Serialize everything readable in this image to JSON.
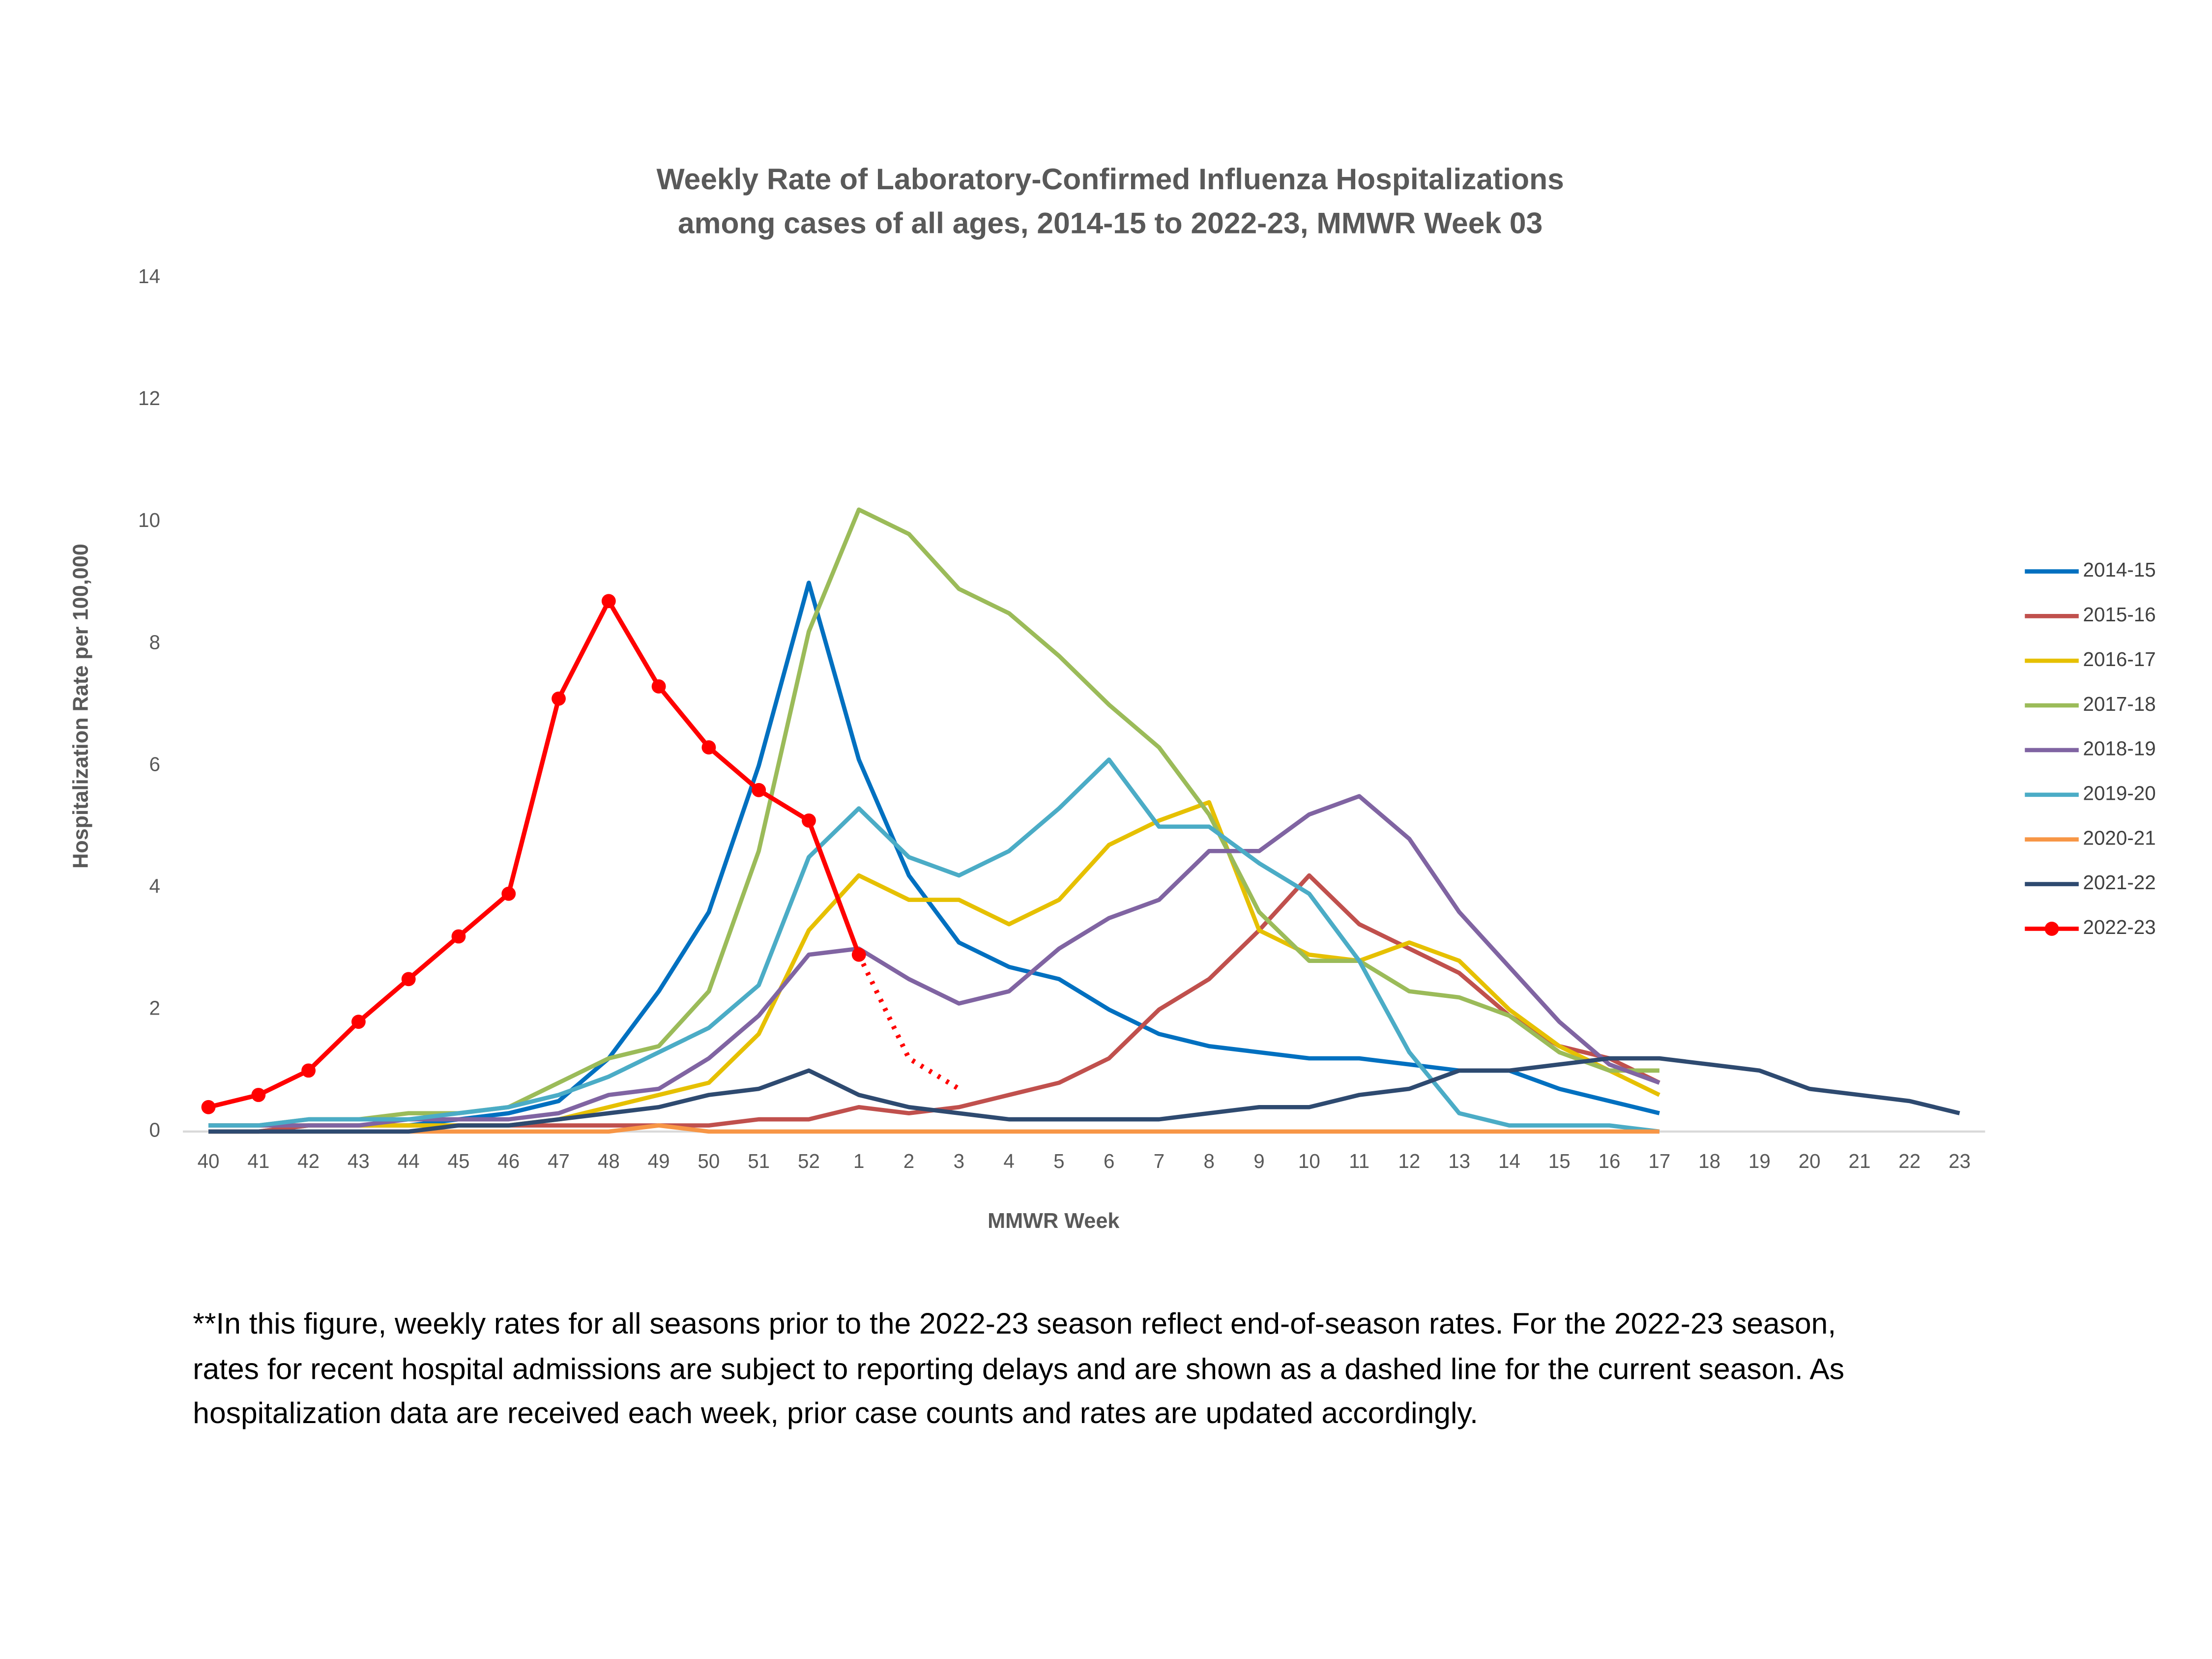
{
  "chart_data": {
    "type": "line",
    "title": [
      "Weekly Rate of Laboratory-Confirmed Influenza Hospitalizations",
      "among cases of all ages, 2014-15 to 2022-23, MMWR  Week 03"
    ],
    "x_label": "MMWR Week",
    "y_label": "Hospitalization Rate per 100,000",
    "categories": [
      "40",
      "41",
      "42",
      "43",
      "44",
      "45",
      "46",
      "47",
      "48",
      "49",
      "50",
      "51",
      "52",
      "1",
      "2",
      "3",
      "4",
      "5",
      "6",
      "7",
      "8",
      "9",
      "10",
      "11",
      "12",
      "13",
      "14",
      "15",
      "16",
      "17",
      "18",
      "19",
      "20",
      "21",
      "22",
      "23"
    ],
    "ylim": [
      0,
      14
    ],
    "yticks": [
      0,
      2,
      4,
      6,
      8,
      10,
      12,
      14
    ],
    "grid": false,
    "legend": "right",
    "series": [
      {
        "name": "2014-15",
        "color": "#0070c0",
        "values": [
          0,
          0,
          0.1,
          0.1,
          0.1,
          0.2,
          0.3,
          0.5,
          1.2,
          2.3,
          3.6,
          6.0,
          9.0,
          6.1,
          4.2,
          3.1,
          2.7,
          2.5,
          2.0,
          1.6,
          1.4,
          1.3,
          1.2,
          1.2,
          1.1,
          1.0,
          1.0,
          0.7,
          0.5,
          0.3,
          null,
          null,
          null,
          null,
          null,
          null
        ]
      },
      {
        "name": "2015-16",
        "color": "#c0504d",
        "values": [
          0,
          0,
          0.1,
          0.1,
          0.1,
          0.1,
          0.1,
          0.1,
          0.1,
          0.1,
          0.1,
          0.2,
          0.2,
          0.4,
          0.3,
          0.4,
          0.6,
          0.8,
          1.2,
          2.0,
          2.5,
          3.3,
          4.2,
          3.4,
          3.0,
          2.6,
          1.9,
          1.4,
          1.2,
          0.8,
          null,
          null,
          null,
          null,
          null,
          null
        ]
      },
      {
        "name": "2016-17",
        "color": "#e6c000",
        "values": [
          0.1,
          0.1,
          0.1,
          0.1,
          0.1,
          0.1,
          0.1,
          0.2,
          0.4,
          0.6,
          0.8,
          1.6,
          3.3,
          4.2,
          3.8,
          3.8,
          3.4,
          3.8,
          4.7,
          5.1,
          5.4,
          3.3,
          2.9,
          2.8,
          3.1,
          2.8,
          2.0,
          1.4,
          1.0,
          0.6,
          null,
          null,
          null,
          null,
          null,
          null
        ]
      },
      {
        "name": "2017-18",
        "color": "#9bbb59",
        "values": [
          0.1,
          0.1,
          0.2,
          0.2,
          0.3,
          0.3,
          0.4,
          0.8,
          1.2,
          1.4,
          2.3,
          4.6,
          8.2,
          10.2,
          9.8,
          8.9,
          8.5,
          7.8,
          7.0,
          6.3,
          5.2,
          3.6,
          2.8,
          2.8,
          2.3,
          2.2,
          1.9,
          1.3,
          1.0,
          1.0,
          null,
          null,
          null,
          null,
          null,
          null
        ]
      },
      {
        "name": "2018-19",
        "color": "#8064a2",
        "values": [
          0.1,
          0.1,
          0.1,
          0.1,
          0.2,
          0.2,
          0.2,
          0.3,
          0.6,
          0.7,
          1.2,
          1.9,
          2.9,
          3.0,
          2.5,
          2.1,
          2.3,
          3.0,
          3.5,
          3.8,
          4.6,
          4.6,
          5.2,
          5.5,
          4.8,
          3.6,
          2.7,
          1.8,
          1.1,
          0.8,
          null,
          null,
          null,
          null,
          null,
          null
        ]
      },
      {
        "name": "2019-20",
        "color": "#4bacc6",
        "values": [
          0.1,
          0.1,
          0.2,
          0.2,
          0.2,
          0.3,
          0.4,
          0.6,
          0.9,
          1.3,
          1.7,
          2.4,
          4.5,
          5.3,
          4.5,
          4.2,
          4.6,
          5.3,
          6.1,
          5.0,
          5.0,
          4.4,
          3.9,
          2.8,
          1.3,
          0.3,
          0.1,
          0.1,
          0.1,
          0,
          null,
          null,
          null,
          null,
          null,
          null
        ]
      },
      {
        "name": "2020-21",
        "color": "#f79646",
        "values": [
          0,
          0,
          0,
          0,
          0,
          0,
          0,
          0,
          0,
          0.1,
          0,
          0,
          0,
          0,
          0,
          0,
          0,
          0,
          0,
          0,
          0,
          0,
          0,
          0,
          0,
          0,
          0,
          0,
          0,
          0,
          null,
          null,
          null,
          null,
          null,
          null
        ]
      },
      {
        "name": "2021-22",
        "color": "#2e4a70",
        "values": [
          0,
          0,
          0,
          0,
          0,
          0.1,
          0.1,
          0.2,
          0.3,
          0.4,
          0.6,
          0.7,
          1.0,
          0.6,
          0.4,
          0.3,
          0.2,
          0.2,
          0.2,
          0.2,
          0.3,
          0.4,
          0.4,
          0.6,
          0.7,
          1.0,
          1.0,
          1.1,
          1.2,
          1.2,
          1.1,
          1.0,
          0.7,
          0.6,
          0.5,
          0.3
        ]
      },
      {
        "name": "2022-23",
        "color": "#ff0000",
        "markers": true,
        "dashed_from": "1",
        "values": [
          0.4,
          0.6,
          1.0,
          1.8,
          2.5,
          3.2,
          3.9,
          7.1,
          8.7,
          7.3,
          6.3,
          5.6,
          5.1,
          2.9,
          1.2,
          0.7,
          null,
          null,
          null,
          null,
          null,
          null,
          null,
          null,
          null,
          null,
          null,
          null,
          null,
          null,
          null,
          null,
          null,
          null,
          null,
          null
        ]
      }
    ]
  },
  "note": [
    "**In this figure, weekly rates for all seasons prior to the 2022-23 season reflect end-of-season rates. For the 2022-23 season,",
    "rates for recent hospital admissions are subject to reporting delays and are shown as a dashed line for the current season. As",
    "hospitalization data are received each week, prior case counts and rates are updated accordingly."
  ]
}
